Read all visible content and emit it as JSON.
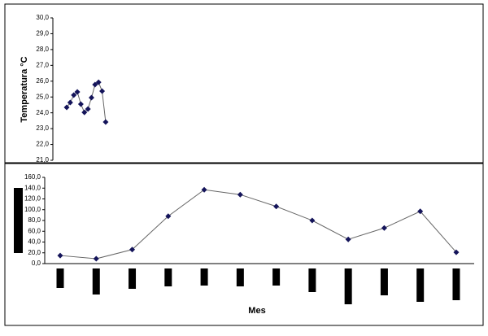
{
  "chart_data": [
    {
      "type": "line",
      "ylabel": "Temperatura °C",
      "categories": [
        null,
        null,
        null,
        null,
        null,
        null,
        null,
        null,
        null,
        null,
        null,
        null
      ],
      "series": [
        {
          "color": "#14145a",
          "values": [
            24.34,
            24.65,
            25.12,
            25.32,
            24.55,
            24.03,
            24.24,
            24.96,
            25.78,
            25.93,
            25.37,
            23.42
          ]
        }
      ],
      "ylim": [
        21,
        30
      ],
      "yticks": [
        {
          "value": 21,
          "label": "21,0"
        },
        {
          "value": 22,
          "label": "22,0"
        },
        {
          "value": 23,
          "label": "23,0"
        },
        {
          "value": 24,
          "label": "24,0"
        },
        {
          "value": 25,
          "label": "25,0"
        },
        {
          "value": 26,
          "label": "26,0"
        },
        {
          "value": 27,
          "label": "27,0"
        },
        {
          "value": 28,
          "label": "28,0"
        },
        {
          "value": 29,
          "label": "29,0"
        },
        {
          "value": 30,
          "label": "30,0"
        }
      ]
    },
    {
      "type": "line",
      "xlabel": "Mes",
      "categories": [
        null,
        null,
        null,
        null,
        null,
        null,
        null,
        null,
        null,
        null,
        null,
        null
      ],
      "series": [
        {
          "color": "#14145a",
          "values": [
            15,
            9,
            26,
            88,
            137,
            128,
            106,
            80,
            45,
            66,
            97,
            21
          ]
        }
      ],
      "ylim": [
        0,
        160
      ],
      "yticks": [
        {
          "value": 0,
          "label": "0,0"
        },
        {
          "value": 20,
          "label": "20,0"
        },
        {
          "value": 40,
          "label": "40,0"
        },
        {
          "value": 60,
          "label": "60,0"
        },
        {
          "value": 80,
          "label": "80,0"
        },
        {
          "value": 100,
          "label": "100,0"
        },
        {
          "value": 120,
          "label": "120,0"
        },
        {
          "value": 140,
          "label": "140,0"
        },
        {
          "value": 160,
          "label": "160,0"
        }
      ]
    }
  ]
}
